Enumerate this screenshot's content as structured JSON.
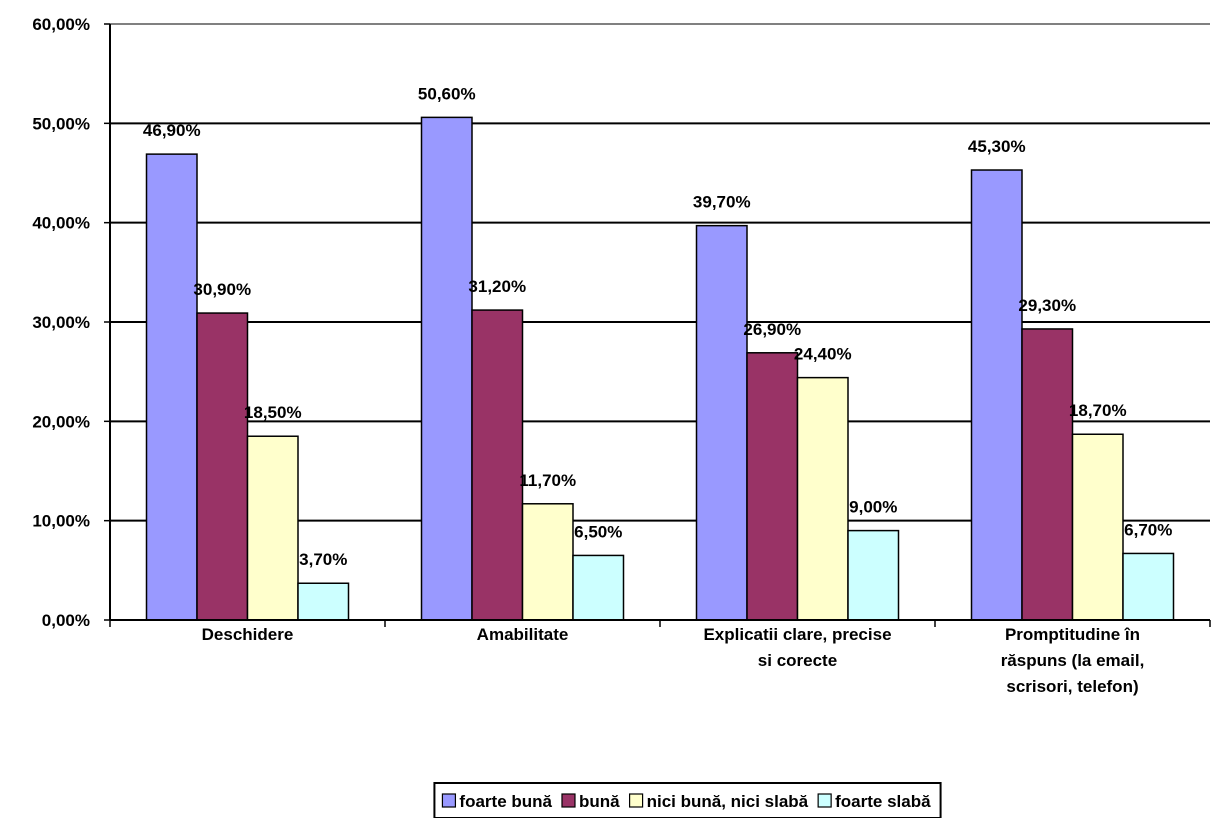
{
  "chart_data": {
    "type": "bar",
    "categories": [
      [
        "Deschidere"
      ],
      [
        "Amabilitate"
      ],
      [
        "Explicatii clare, precise",
        "si corecte"
      ],
      [
        "Promptitudine în",
        "răspuns (la email,",
        "scrisori, telefon)"
      ]
    ],
    "series": [
      {
        "name": "foarte bună",
        "color": "#9999ff",
        "values": [
          46.9,
          50.6,
          39.7,
          45.3
        ],
        "labels": [
          "46,90%",
          "50,60%",
          "39,70%",
          "45,30%"
        ]
      },
      {
        "name": "bună",
        "color": "#993366",
        "values": [
          30.9,
          31.2,
          26.9,
          29.3
        ],
        "labels": [
          "30,90%",
          "31,20%",
          "26,90%",
          "29,30%"
        ]
      },
      {
        "name": "nici bună, nici slabă",
        "color": "#ffffcc",
        "values": [
          18.5,
          11.7,
          24.4,
          18.7
        ],
        "labels": [
          "18,50%",
          "11,70%",
          "24,40%",
          "18,70%"
        ]
      },
      {
        "name": "foarte slabă",
        "color": "#ccffff",
        "values": [
          3.7,
          6.5,
          9.0,
          6.7
        ],
        "labels": [
          "3,70%",
          "6,50%",
          "9,00%",
          "6,70%"
        ]
      }
    ],
    "yticks": [
      "0,00%",
      "10,00%",
      "20,00%",
      "30,00%",
      "40,00%",
      "50,00%",
      "60,00%"
    ],
    "ylim": [
      0,
      60
    ],
    "grid": true,
    "legend_position": "bottom"
  }
}
